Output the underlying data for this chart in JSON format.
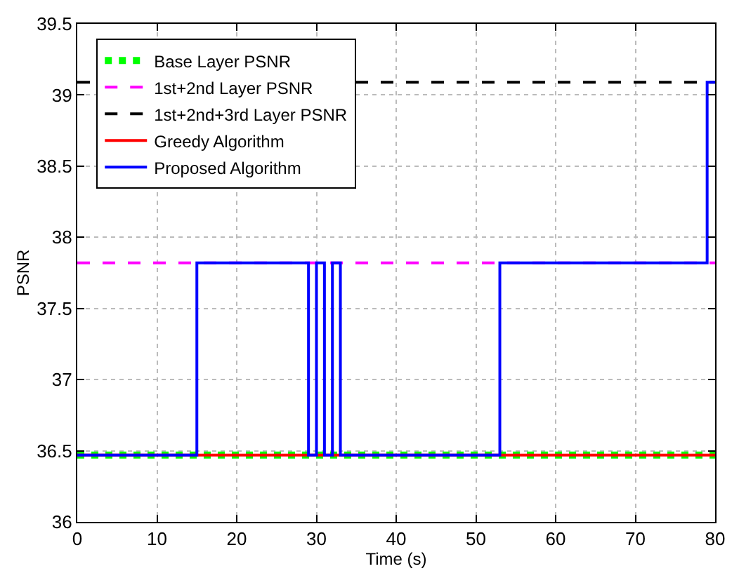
{
  "chart_data": {
    "type": "step",
    "xlabel": "Time (s)",
    "ylabel": "PSNR",
    "xlim": [
      0,
      80
    ],
    "xticks": [
      0,
      10,
      20,
      30,
      40,
      50,
      60,
      70,
      80
    ],
    "ylim": [
      36,
      39.5
    ],
    "yticks": [
      36,
      36.5,
      37,
      37.5,
      38,
      38.5,
      39,
      39.5
    ],
    "grid": true,
    "legend": "top left",
    "marker": "none",
    "series": [
      {
        "name": "Base Layer PSNR",
        "type": "line",
        "color": "#00ff00",
        "line_style": "dotted",
        "x": [
          0,
          80
        ],
        "values": [
          36.47,
          36.47
        ]
      },
      {
        "name": "1st+2nd Layer PSNR",
        "type": "line",
        "color": "#ff00ff",
        "line_style": "dashed",
        "x": [
          0,
          80
        ],
        "values": [
          37.82,
          37.82
        ]
      },
      {
        "name": "1st+2nd+3rd Layer PSNR",
        "type": "line",
        "color": "#000000",
        "line_style": "dashed",
        "x": [
          0,
          80
        ],
        "values": [
          39.09,
          39.09
        ]
      },
      {
        "name": "Greedy Algorithm",
        "color": "#ff0000",
        "line_style": "solid",
        "x": [
          0,
          80
        ],
        "values": [
          36.47,
          36.47
        ]
      },
      {
        "name": "Proposed Algorithm",
        "color": "#0000ff",
        "line_style": "solid",
        "x": [
          0,
          15,
          29,
          30,
          31,
          32,
          33,
          53,
          79,
          80
        ],
        "values": [
          36.47,
          37.82,
          36.47,
          37.82,
          36.47,
          37.82,
          36.47,
          37.82,
          39.09,
          39.09
        ]
      }
    ]
  }
}
